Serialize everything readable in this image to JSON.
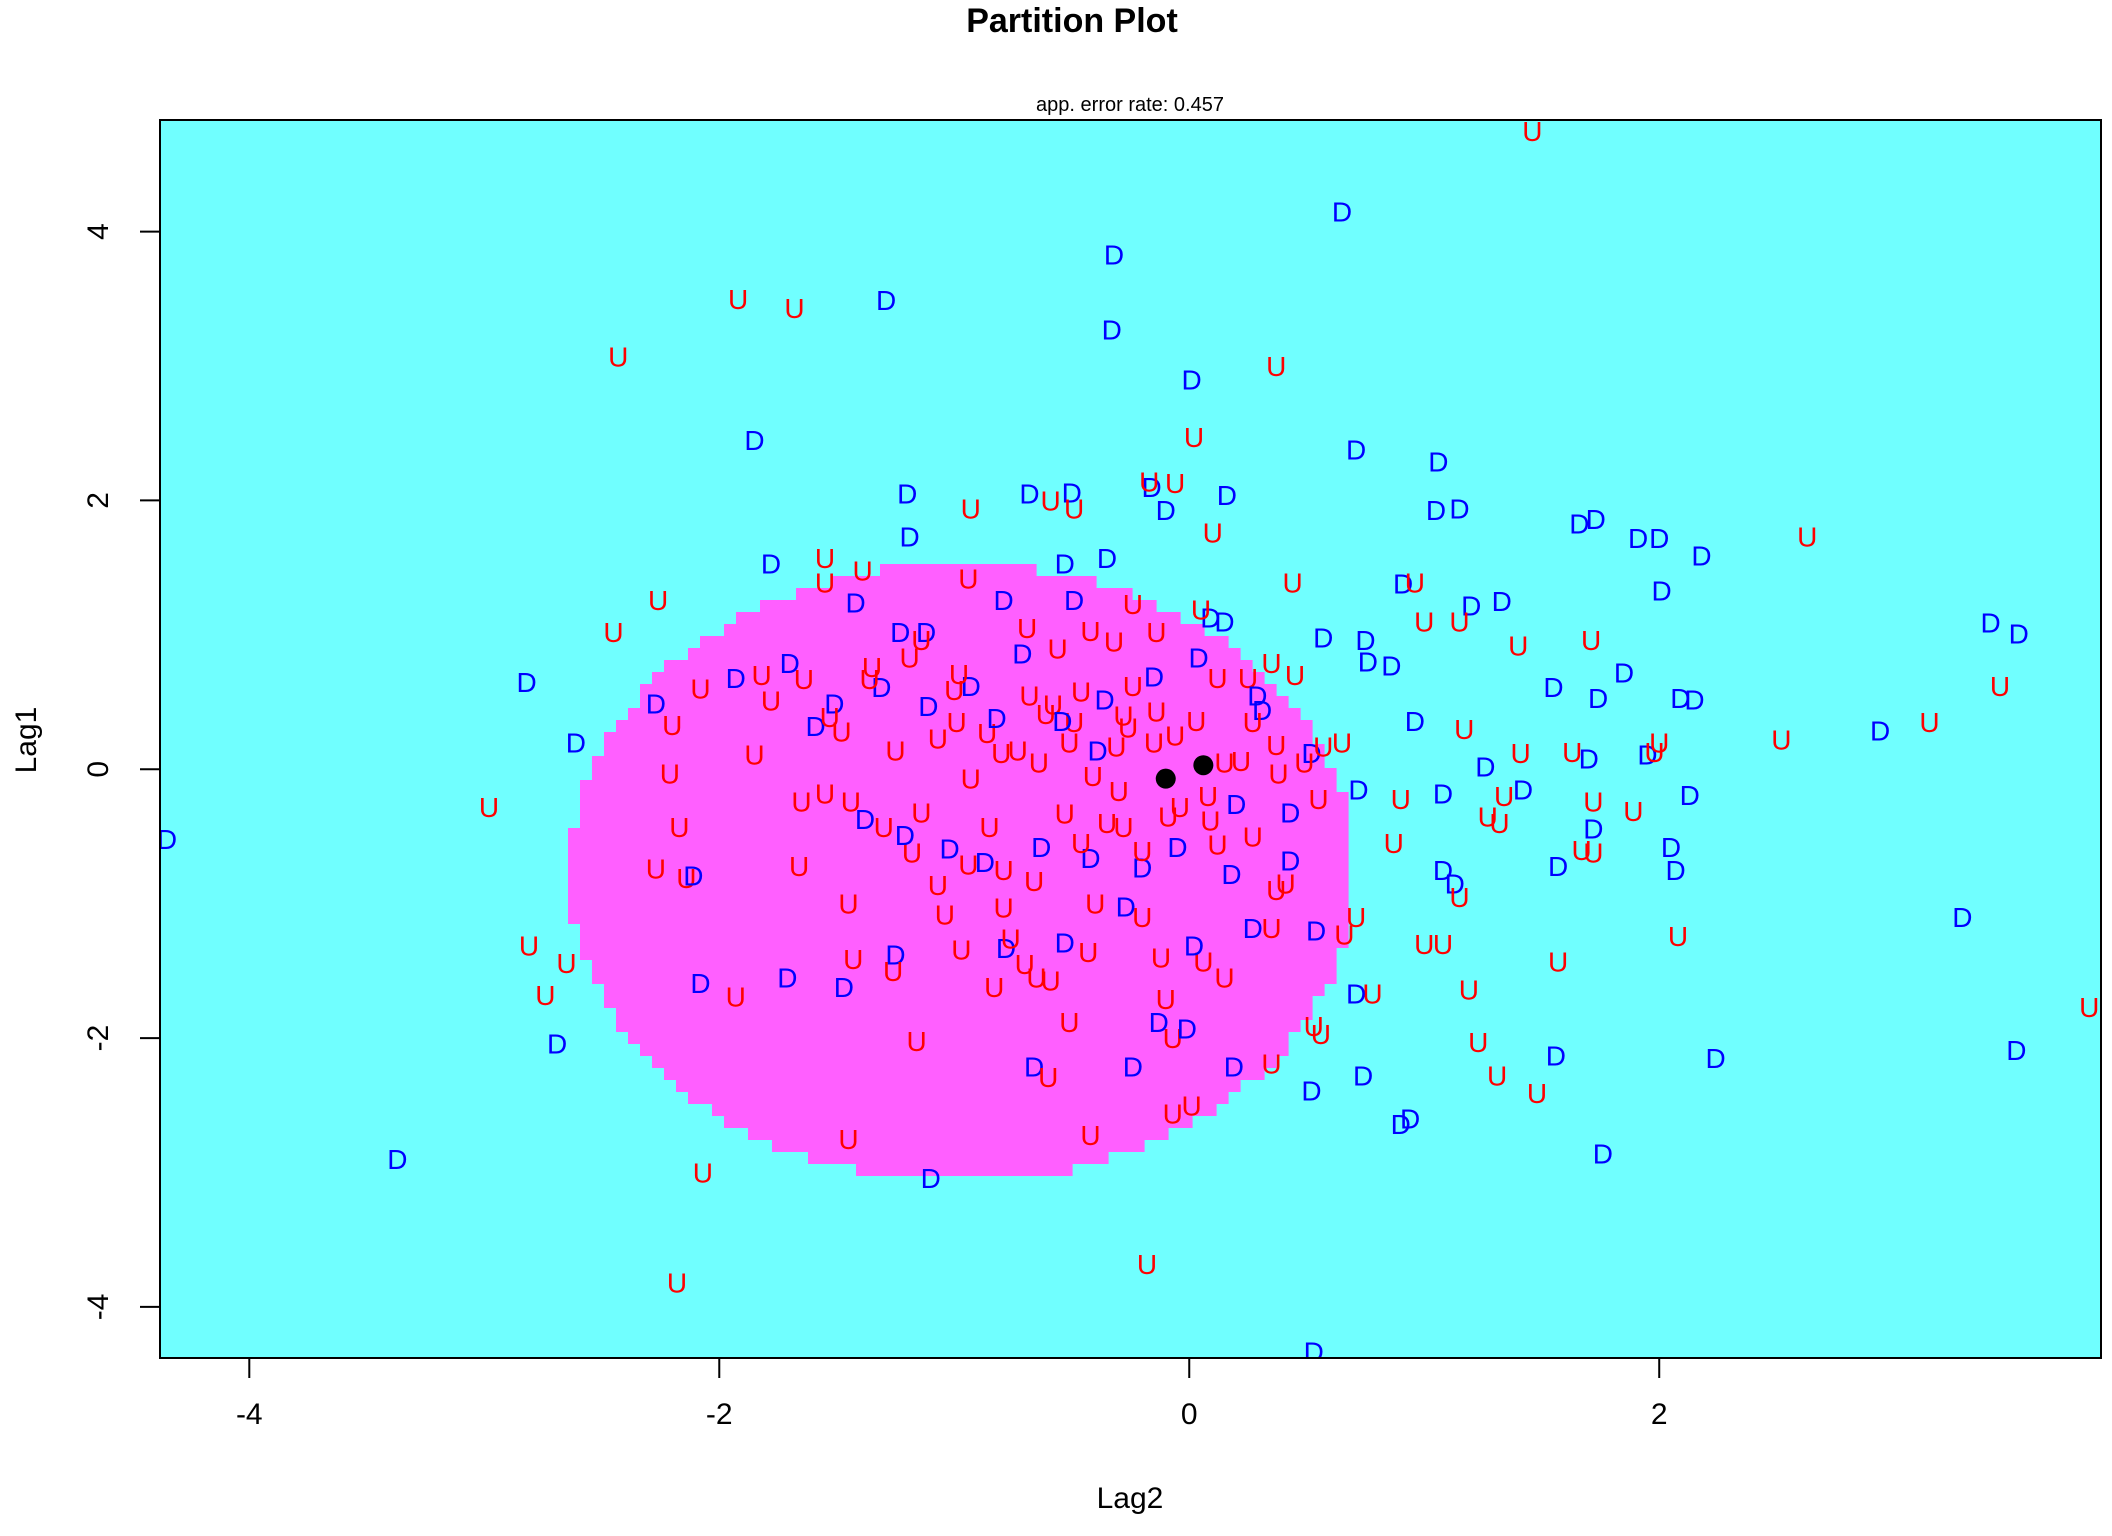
{
  "chart_data": {
    "type": "scatter",
    "title": "Partition Plot",
    "subtitle": "app. error rate: 0.457",
    "xlabel": "Lag2",
    "ylabel": "Lag1",
    "xlim": [
      -4.38,
      3.88
    ],
    "ylim": [
      -4.38,
      4.83
    ],
    "xticks": [
      "-4",
      "-2",
      "0",
      "2"
    ],
    "yticks": [
      "-4",
      "-2",
      "0",
      "2",
      "4"
    ],
    "background_region_color": "#70ffff",
    "partition_region_color": "#ff5fff",
    "class_colors": {
      "D": "#0000ff",
      "U": "#ff0000"
    },
    "partition_region": {
      "label": "U",
      "cx": -0.97,
      "cy": -0.77,
      "rx": 1.67,
      "ry": 2.3
    },
    "centroids": [
      {
        "x": -0.1,
        "y": -0.07
      },
      {
        "x": 0.06,
        "y": 0.03
      }
    ],
    "series": [
      {
        "name": "D",
        "points": [
          [
            -4.35,
            -0.52
          ],
          [
            -3.37,
            -2.9
          ],
          [
            -2.69,
            -2.04
          ],
          [
            -2.82,
            0.65
          ],
          [
            -2.61,
            0.2
          ],
          [
            -1.85,
            2.45
          ],
          [
            -1.29,
            3.49
          ],
          [
            -1.19,
            1.73
          ],
          [
            -1.2,
            2.05
          ],
          [
            -0.68,
            2.05
          ],
          [
            -0.32,
            3.83
          ],
          [
            -0.33,
            3.27
          ],
          [
            0.01,
            2.9
          ],
          [
            0.16,
            2.04
          ],
          [
            0.65,
            4.15
          ],
          [
            0.71,
            2.38
          ],
          [
            1.06,
            2.29
          ],
          [
            1.05,
            1.93
          ],
          [
            1.15,
            1.94
          ],
          [
            1.66,
            1.83
          ],
          [
            1.73,
            1.86
          ],
          [
            1.91,
            1.72
          ],
          [
            2.0,
            1.72
          ],
          [
            2.18,
            1.59
          ],
          [
            2.01,
            1.33
          ],
          [
            3.41,
            1.09
          ],
          [
            3.53,
            1.01
          ],
          [
            2.24,
            -2.15
          ],
          [
            3.52,
            -2.09
          ],
          [
            3.29,
            -1.1
          ],
          [
            1.76,
            -2.86
          ],
          [
            1.56,
            -2.13
          ],
          [
            1.57,
            -0.72
          ],
          [
            1.72,
            -0.44
          ],
          [
            2.05,
            -0.58
          ],
          [
            2.07,
            -0.75
          ],
          [
            2.13,
            -0.19
          ],
          [
            2.94,
            0.29
          ],
          [
            1.85,
            0.72
          ],
          [
            1.55,
            0.61
          ],
          [
            2.09,
            0.53
          ],
          [
            2.15,
            0.52
          ],
          [
            1.74,
            0.53
          ],
          [
            1.08,
            -0.75
          ],
          [
            1.13,
            -0.85
          ],
          [
            0.94,
            -2.6
          ],
          [
            0.9,
            -2.64
          ],
          [
            0.53,
            -4.33
          ],
          [
            -1.1,
            -3.04
          ],
          [
            1.33,
            1.25
          ],
          [
            1.2,
            1.22
          ],
          [
            0.91,
            1.38
          ],
          [
            0.75,
            0.96
          ],
          [
            0.76,
            0.8
          ],
          [
            0.86,
            0.77
          ],
          [
            0.57,
            0.98
          ],
          [
            0.09,
            1.13
          ],
          [
            0.15,
            1.1
          ],
          [
            1.08,
            -0.18
          ],
          [
            1.26,
            0.02
          ],
          [
            1.42,
            -0.15
          ],
          [
            1.7,
            0.08
          ],
          [
            1.95,
            0.11
          ],
          [
            -0.53,
            1.53
          ],
          [
            -0.35,
            1.57
          ],
          [
            -0.5,
            2.06
          ],
          [
            -0.1,
            1.93
          ],
          [
            -0.16,
            2.1
          ],
          [
            0.52,
            0.12
          ],
          [
            0.31,
            0.44
          ],
          [
            0.2,
            -0.26
          ],
          [
            0.43,
            -0.32
          ],
          [
            0.72,
            -0.15
          ],
          [
            0.96,
            0.36
          ],
          [
            -1.78,
            1.53
          ]
        ]
      },
      {
        "name": "U",
        "points": [
          [
            -2.98,
            -0.28
          ],
          [
            -2.81,
            -1.31
          ],
          [
            -2.74,
            -1.68
          ],
          [
            -2.65,
            -1.44
          ],
          [
            -2.45,
            1.02
          ],
          [
            -2.43,
            3.07
          ],
          [
            -2.14,
            -0.81
          ],
          [
            -2.07,
            -3.0
          ],
          [
            -2.18,
            -3.82
          ],
          [
            -1.92,
            3.5
          ],
          [
            -1.68,
            3.43
          ],
          [
            -1.55,
            1.57
          ],
          [
            -1.45,
            -2.75
          ],
          [
            -2.26,
            1.26
          ],
          [
            -2.08,
            0.6
          ],
          [
            0.37,
            3.0
          ],
          [
            0.02,
            2.47
          ],
          [
            0.1,
            1.76
          ],
          [
            -0.49,
            1.94
          ],
          [
            -0.93,
            1.94
          ],
          [
            -0.17,
            2.14
          ],
          [
            -0.59,
            2.0
          ],
          [
            -0.06,
            2.13
          ],
          [
            0.44,
            1.39
          ],
          [
            0.96,
            1.39
          ],
          [
            1.0,
            1.1
          ],
          [
            1.15,
            1.1
          ],
          [
            1.4,
            0.92
          ],
          [
            1.71,
            0.96
          ],
          [
            2.63,
            1.73
          ],
          [
            3.45,
            0.62
          ],
          [
            3.15,
            0.35
          ],
          [
            2.52,
            0.22
          ],
          [
            2.0,
            0.2
          ],
          [
            1.98,
            0.13
          ],
          [
            1.63,
            0.13
          ],
          [
            1.41,
            0.12
          ],
          [
            1.17,
            0.3
          ],
          [
            1.34,
            -0.2
          ],
          [
            1.27,
            -0.35
          ],
          [
            1.32,
            -0.4
          ],
          [
            1.72,
            -0.24
          ],
          [
            1.89,
            -0.31
          ],
          [
            1.72,
            -0.62
          ],
          [
            1.67,
            -0.6
          ],
          [
            2.08,
            -1.24
          ],
          [
            1.57,
            -1.43
          ],
          [
            1.15,
            -0.95
          ],
          [
            1.08,
            -1.3
          ],
          [
            1.0,
            -1.3
          ],
          [
            1.19,
            -1.64
          ],
          [
            1.23,
            -2.03
          ],
          [
            1.31,
            -2.28
          ],
          [
            1.48,
            -2.41
          ],
          [
            3.83,
            -1.77
          ],
          [
            -0.18,
            -3.68
          ],
          [
            -0.07,
            -2.0
          ],
          [
            0.56,
            -1.97
          ],
          [
            0.35,
            -2.19
          ],
          [
            1.46,
            4.75
          ],
          [
            -0.7,
            -1.45
          ],
          [
            -0.83,
            -1.62
          ],
          [
            -0.4,
            -1.0
          ],
          [
            -1.3,
            -0.43
          ],
          [
            -1.45,
            -1.0
          ],
          [
            -0.94,
            -0.71
          ],
          [
            -0.79,
            -0.75
          ],
          [
            -0.28,
            -0.43
          ],
          [
            0.12,
            -0.56
          ],
          [
            0.37,
            -0.9
          ],
          [
            -0.32,
            0.95
          ],
          [
            -0.14,
            1.02
          ],
          [
            0.25,
            0.68
          ],
          [
            0.45,
            0.7
          ],
          [
            -0.68,
            0.55
          ],
          [
            -0.58,
            0.48
          ],
          [
            -0.49,
            0.35
          ],
          [
            -0.26,
            0.31
          ],
          [
            0.15,
            0.05
          ],
          [
            0.37,
            0.18
          ],
          [
            0.57,
            0.17
          ],
          [
            0.65,
            0.2
          ],
          [
            0.49,
            0.05
          ],
          [
            -0.04,
            -0.28
          ],
          [
            0.09,
            -0.38
          ],
          [
            -1.48,
            0.28
          ],
          [
            -1.25,
            0.14
          ],
          [
            -1.0,
            0.59
          ],
          [
            -0.86,
            0.27
          ],
          [
            -0.73,
            0.14
          ],
          [
            -1.64,
            0.67
          ],
          [
            -1.78,
            0.51
          ],
          [
            -1.85,
            0.11
          ],
          [
            -1.55,
            -0.18
          ],
          [
            -1.18,
            -0.62
          ],
          [
            -1.07,
            -0.86
          ],
          [
            -0.97,
            -1.34
          ],
          [
            -0.65,
            -1.55
          ],
          [
            -0.43,
            -1.36
          ],
          [
            -0.2,
            -1.1
          ],
          [
            0.06,
            -1.43
          ],
          [
            0.35,
            -1.18
          ],
          [
            0.66,
            -1.23
          ],
          [
            0.78,
            -1.67
          ],
          [
            0.87,
            -0.55
          ],
          [
            -0.99,
            0.35
          ],
          [
            -0.61,
            0.41
          ],
          [
            -0.24,
            0.62
          ],
          [
            -0.06,
            0.25
          ],
          [
            0.27,
            0.35
          ]
        ]
      },
      {
        "name": "D",
        "points": [
          [
            -1.51,
            0.49
          ],
          [
            -1.31,
            0.61
          ],
          [
            -1.11,
            0.47
          ],
          [
            -0.93,
            0.62
          ],
          [
            -0.71,
            0.86
          ],
          [
            -0.54,
            0.36
          ],
          [
            -0.36,
            0.52
          ],
          [
            -0.15,
            0.69
          ],
          [
            0.04,
            0.83
          ],
          [
            0.29,
            0.55
          ],
          [
            -1.38,
            -0.37
          ],
          [
            -1.21,
            -0.49
          ],
          [
            -1.02,
            -0.59
          ],
          [
            -0.87,
            -0.69
          ],
          [
            -0.63,
            -0.58
          ],
          [
            -0.42,
            -0.66
          ],
          [
            -0.2,
            -0.73
          ],
          [
            -0.05,
            -0.58
          ],
          [
            0.18,
            -0.78
          ],
          [
            0.43,
            -0.68
          ],
          [
            -1.71,
            -1.55
          ],
          [
            -1.47,
            -1.62
          ],
          [
            -1.25,
            -1.38
          ],
          [
            -0.78,
            -1.33
          ],
          [
            -0.53,
            -1.29
          ],
          [
            -0.27,
            -1.02
          ],
          [
            0.02,
            -1.31
          ],
          [
            0.27,
            -1.18
          ],
          [
            0.54,
            -1.2
          ],
          [
            0.71,
            -1.67
          ],
          [
            -1.42,
            1.24
          ],
          [
            -1.23,
            1.02
          ],
          [
            -1.12,
            1.02
          ],
          [
            -0.79,
            1.26
          ],
          [
            -0.49,
            1.26
          ],
          [
            -2.11,
            -0.79
          ],
          [
            -2.27,
            0.49
          ],
          [
            -2.08,
            -1.59
          ],
          [
            -1.93,
            0.68
          ],
          [
            -1.59,
            0.32
          ],
          [
            -0.66,
            -2.21
          ],
          [
            -0.24,
            -2.21
          ],
          [
            -0.01,
            -1.93
          ],
          [
            0.19,
            -2.21
          ],
          [
            0.52,
            -2.39
          ],
          [
            0.74,
            -2.28
          ],
          [
            -0.13,
            -1.88
          ],
          [
            -1.7,
            0.79
          ],
          [
            -0.82,
            0.38
          ],
          [
            -0.39,
            0.14
          ]
        ]
      },
      {
        "name": "U",
        "points": [
          [
            -1.82,
            0.7
          ],
          [
            -1.55,
            1.39
          ],
          [
            -1.39,
            1.48
          ],
          [
            -1.14,
            0.96
          ],
          [
            -1.35,
            0.76
          ],
          [
            -0.94,
            1.42
          ],
          [
            -0.69,
            1.05
          ],
          [
            -0.42,
            1.03
          ],
          [
            -0.24,
            1.23
          ],
          [
            0.05,
            1.19
          ],
          [
            -2.2,
            0.33
          ],
          [
            -2.21,
            -0.03
          ],
          [
            -2.17,
            -0.43
          ],
          [
            -2.27,
            -0.74
          ],
          [
            -1.93,
            -1.69
          ],
          [
            -1.65,
            -0.24
          ],
          [
            -1.66,
            -0.72
          ],
          [
            -1.44,
            -0.24
          ],
          [
            -1.43,
            -1.41
          ],
          [
            -1.26,
            -1.5
          ],
          [
            -1.14,
            -0.32
          ],
          [
            -1.04,
            -1.08
          ],
          [
            -0.85,
            -0.43
          ],
          [
            -0.79,
            -1.03
          ],
          [
            -0.59,
            -1.57
          ],
          [
            -0.51,
            -1.88
          ],
          [
            -0.46,
            -0.55
          ],
          [
            -0.3,
            -0.16
          ],
          [
            -0.12,
            -1.4
          ],
          [
            -0.07,
            -2.56
          ],
          [
            0.15,
            -1.55
          ],
          [
            0.41,
            -0.85
          ],
          [
            0.53,
            -1.91
          ],
          [
            0.71,
            -1.1
          ],
          [
            0.9,
            -0.22
          ],
          [
            -0.76,
            -1.26
          ],
          [
            -0.66,
            -0.83
          ],
          [
            -0.53,
            -0.33
          ],
          [
            -0.41,
            -0.05
          ],
          [
            -0.28,
            0.4
          ],
          [
            -0.15,
            0.2
          ],
          [
            0.03,
            0.36
          ],
          [
            0.22,
            0.06
          ],
          [
            0.38,
            -0.03
          ],
          [
            0.55,
            -0.22
          ],
          [
            -1.07,
            0.23
          ],
          [
            -0.93,
            -0.07
          ],
          [
            -0.8,
            0.12
          ],
          [
            -0.64,
            0.05
          ],
          [
            -0.51,
            0.2
          ],
          [
            -0.35,
            -0.4
          ],
          [
            -0.2,
            -0.61
          ],
          [
            -0.09,
            -0.35
          ],
          [
            0.08,
            -0.2
          ],
          [
            0.27,
            -0.5
          ],
          [
            -1.53,
            0.39
          ],
          [
            -1.36,
            0.67
          ],
          [
            -1.19,
            0.83
          ],
          [
            -0.98,
            0.71
          ],
          [
            -0.56,
            0.9
          ],
          [
            -0.46,
            0.58
          ],
          [
            -0.31,
            0.17
          ],
          [
            -0.14,
            0.43
          ],
          [
            0.12,
            0.68
          ],
          [
            0.35,
            0.79
          ],
          [
            -0.6,
            -2.29
          ],
          [
            -0.42,
            -2.72
          ],
          [
            -1.16,
            -2.02
          ],
          [
            -0.1,
            -1.71
          ],
          [
            0.01,
            -2.5
          ]
        ]
      }
    ]
  }
}
